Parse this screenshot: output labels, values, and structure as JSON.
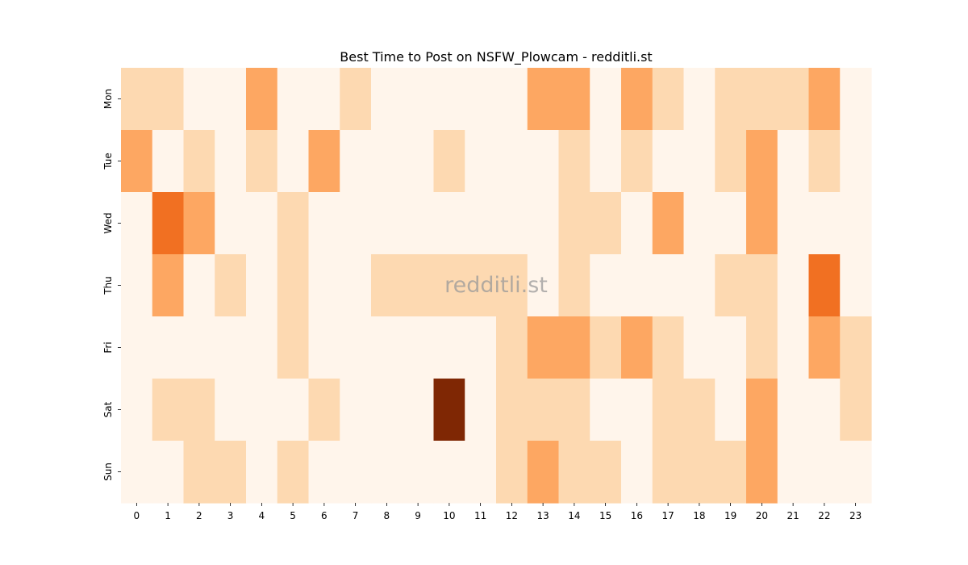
{
  "chart_data": {
    "type": "heatmap",
    "title": "Best Time to Post on NSFW_Plowcam - redditli.st",
    "xlabel": "",
    "ylabel": "",
    "x_categories": [
      "0",
      "1",
      "2",
      "3",
      "4",
      "5",
      "6",
      "7",
      "8",
      "9",
      "10",
      "11",
      "12",
      "13",
      "14",
      "15",
      "16",
      "17",
      "18",
      "19",
      "20",
      "21",
      "22",
      "23"
    ],
    "y_categories": [
      "Mon",
      "Tue",
      "Wed",
      "Thu",
      "Fri",
      "Sat",
      "Sun"
    ],
    "values": [
      [
        1,
        1,
        0,
        0,
        2,
        0,
        0,
        1,
        0,
        0,
        0,
        0,
        0,
        2,
        2,
        0,
        2,
        1,
        0,
        1,
        1,
        1,
        2,
        0
      ],
      [
        2,
        0,
        1,
        0,
        1,
        0,
        2,
        0,
        0,
        0,
        1,
        0,
        0,
        0,
        1,
        0,
        1,
        0,
        0,
        1,
        2,
        0,
        1,
        0
      ],
      [
        0,
        3,
        2,
        0,
        0,
        1,
        0,
        0,
        0,
        0,
        0,
        0,
        0,
        0,
        1,
        1,
        0,
        2,
        0,
        0,
        2,
        0,
        0,
        0
      ],
      [
        0,
        2,
        0,
        1,
        0,
        1,
        0,
        0,
        1,
        1,
        1,
        1,
        1,
        0,
        1,
        0,
        0,
        0,
        0,
        1,
        1,
        0,
        3,
        0
      ],
      [
        0,
        0,
        0,
        0,
        0,
        1,
        0,
        0,
        0,
        0,
        0,
        0,
        1,
        2,
        2,
        1,
        2,
        1,
        0,
        0,
        1,
        0,
        2,
        1
      ],
      [
        0,
        1,
        1,
        0,
        0,
        0,
        1,
        0,
        0,
        0,
        4,
        0,
        1,
        1,
        1,
        0,
        0,
        1,
        1,
        0,
        2,
        0,
        0,
        1
      ],
      [
        0,
        0,
        1,
        1,
        0,
        1,
        0,
        0,
        0,
        0,
        0,
        0,
        1,
        2,
        1,
        1,
        0,
        1,
        1,
        1,
        2,
        0,
        0,
        0
      ]
    ],
    "colorscale": [
      "#fff5eb",
      "#fdd9b1",
      "#fda762",
      "#f17022",
      "#7f2704"
    ],
    "colorbar": false,
    "watermark": "redditli.st"
  }
}
